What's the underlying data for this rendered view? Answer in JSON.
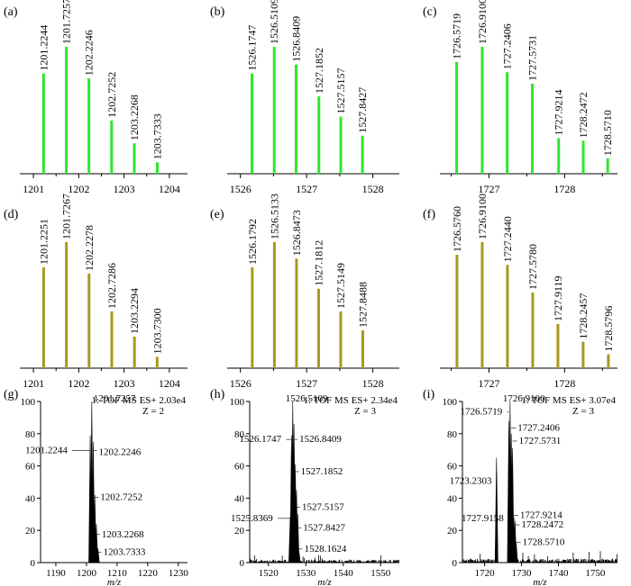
{
  "figure": {
    "colors": {
      "green": "#2EE62E",
      "olive": "#A69A1E",
      "spectrum": "#000000",
      "axis": "#000000"
    }
  },
  "chart_data": [
    {
      "type": "bar",
      "panel": "(a)",
      "style": "stick",
      "color": "#2EE62E",
      "xlim": [
        1200.7,
        1204.4
      ],
      "xticks": [
        1201,
        1202,
        1203,
        1204
      ],
      "peaks": [
        {
          "x": 1201.2244,
          "y": 79,
          "label": "1201.2244"
        },
        {
          "x": 1201.7257,
          "y": 100,
          "label": "1201.7257"
        },
        {
          "x": 1202.2246,
          "y": 75,
          "label": "1202.2246"
        },
        {
          "x": 1202.7252,
          "y": 42,
          "label": "1202.7252"
        },
        {
          "x": 1203.2268,
          "y": 24,
          "label": "1203.2268"
        },
        {
          "x": 1203.7333,
          "y": 9,
          "label": "1203.7333"
        }
      ]
    },
    {
      "type": "bar",
      "panel": "(b)",
      "style": "stick",
      "color": "#2EE62E",
      "xlim": [
        1525.8,
        1528.4
      ],
      "xticks": [
        1526,
        1527,
        1528
      ],
      "peaks": [
        {
          "x": 1526.1747,
          "y": 79,
          "label": "1526.1747"
        },
        {
          "x": 1526.5109,
          "y": 100,
          "label": "1526.5109"
        },
        {
          "x": 1526.8409,
          "y": 86,
          "label": "1526.8409"
        },
        {
          "x": 1527.1852,
          "y": 61,
          "label": "1527.1852"
        },
        {
          "x": 1527.5157,
          "y": 45,
          "label": "1527.5157"
        },
        {
          "x": 1527.8427,
          "y": 30,
          "label": "1527.8427"
        }
      ]
    },
    {
      "type": "bar",
      "panel": "(c)",
      "style": "stick",
      "color": "#2EE62E",
      "xlim": [
        1726.35,
        1728.7
      ],
      "xticks": [
        1727,
        1728
      ],
      "peaks": [
        {
          "x": 1726.5719,
          "y": 88,
          "label": "1726.5719"
        },
        {
          "x": 1726.91,
          "y": 100,
          "label": "1726.9100"
        },
        {
          "x": 1727.2406,
          "y": 80,
          "label": "1727.2406"
        },
        {
          "x": 1727.5731,
          "y": 71,
          "label": "1727.5731"
        },
        {
          "x": 1727.9214,
          "y": 28,
          "label": "1727.9214"
        },
        {
          "x": 1728.2472,
          "y": 26,
          "label": "1728.2472"
        },
        {
          "x": 1728.571,
          "y": 12,
          "label": "1728.5710"
        }
      ]
    },
    {
      "type": "bar",
      "panel": "(d)",
      "style": "stick",
      "color": "#A69A1E",
      "xlim": [
        1200.7,
        1204.4
      ],
      "xticks": [
        1201,
        1202,
        1203,
        1204
      ],
      "peaks": [
        {
          "x": 1201.2251,
          "y": 80,
          "label": "1201.2251"
        },
        {
          "x": 1201.7267,
          "y": 100,
          "label": "1201.7267"
        },
        {
          "x": 1202.2278,
          "y": 75,
          "label": "1202.2278"
        },
        {
          "x": 1202.7286,
          "y": 45,
          "label": "1202.7286"
        },
        {
          "x": 1203.2294,
          "y": 25,
          "label": "1203.2294"
        },
        {
          "x": 1203.73,
          "y": 9,
          "label": "1203.7300"
        }
      ]
    },
    {
      "type": "bar",
      "panel": "(e)",
      "style": "stick",
      "color": "#A69A1E",
      "xlim": [
        1525.8,
        1528.4
      ],
      "xticks": [
        1526,
        1527,
        1528
      ],
      "peaks": [
        {
          "x": 1526.1792,
          "y": 80,
          "label": "1526.1792"
        },
        {
          "x": 1526.5133,
          "y": 100,
          "label": "1526.5133"
        },
        {
          "x": 1526.8473,
          "y": 87,
          "label": "1526.8473"
        },
        {
          "x": 1527.1812,
          "y": 63,
          "label": "1527.1812"
        },
        {
          "x": 1527.5149,
          "y": 45,
          "label": "1527.5149"
        },
        {
          "x": 1527.8488,
          "y": 30,
          "label": "1527.8488"
        }
      ]
    },
    {
      "type": "bar",
      "panel": "(f)",
      "style": "stick",
      "color": "#A69A1E",
      "xlim": [
        1726.35,
        1728.7
      ],
      "xticks": [
        1727,
        1728
      ],
      "peaks": [
        {
          "x": 1726.576,
          "y": 90,
          "label": "1726.5760"
        },
        {
          "x": 1726.91,
          "y": 100,
          "label": "1726.9100"
        },
        {
          "x": 1727.244,
          "y": 82,
          "label": "1727.2440"
        },
        {
          "x": 1727.578,
          "y": 60,
          "label": "1727.5780"
        },
        {
          "x": 1727.9119,
          "y": 35,
          "label": "1727.9119"
        },
        {
          "x": 1728.2457,
          "y": 21,
          "label": "1728.2457"
        },
        {
          "x": 1728.5796,
          "y": 11,
          "label": "1728.5796"
        }
      ]
    },
    {
      "type": "line",
      "panel": "(g)",
      "style": "spectrum",
      "color": "#000000",
      "xlim": [
        1185,
        1233
      ],
      "ylim": [
        0,
        100
      ],
      "xticks": [
        1190,
        1200,
        1210,
        1220,
        1230
      ],
      "yticks": [
        0,
        20,
        40,
        60,
        80,
        100
      ],
      "xlabel": "m/z",
      "noise": 0,
      "header": "1: TOF MS ES+ 2.03e4",
      "charge": "Z = 2",
      "peaks": [
        {
          "x": 1201.2244,
          "y": 79,
          "label": "1201.2244"
        },
        {
          "x": 1201.7257,
          "y": 100,
          "label": "1201.7257"
        },
        {
          "x": 1202.2246,
          "y": 75,
          "label": "1202.2246"
        },
        {
          "x": 1202.7252,
          "y": 42,
          "label": "1202.7252"
        },
        {
          "x": 1203.2268,
          "y": 24,
          "label": "1203.2268"
        },
        {
          "x": 1203.7333,
          "y": 9,
          "label": "1203.7333"
        }
      ]
    },
    {
      "type": "line",
      "panel": "(h)",
      "style": "spectrum",
      "color": "#000000",
      "xlim": [
        1515,
        1555
      ],
      "ylim": [
        0,
        100
      ],
      "xticks": [
        1520,
        1530,
        1540,
        1550
      ],
      "yticks": [
        0,
        20,
        40,
        60,
        80,
        100
      ],
      "xlabel": "m/z",
      "noise": 3,
      "header": "1: TOF MS ES+ 2.34e4",
      "charge": "Z = 3",
      "peaks": [
        {
          "x": 1525.8369,
          "y": 28,
          "label": "1525.8369"
        },
        {
          "x": 1526.1747,
          "y": 79,
          "label": "1526.1747"
        },
        {
          "x": 1526.5109,
          "y": 100,
          "label": "1526.5109"
        },
        {
          "x": 1526.8409,
          "y": 86,
          "label": "1526.8409"
        },
        {
          "x": 1527.1852,
          "y": 61,
          "label": "1527.1852"
        },
        {
          "x": 1527.5157,
          "y": 45,
          "label": "1527.5157"
        },
        {
          "x": 1527.8427,
          "y": 30,
          "label": "1527.8427"
        },
        {
          "x": 1528.1624,
          "y": 7,
          "label": "1528.1624"
        }
      ]
    },
    {
      "type": "line",
      "panel": "(i)",
      "style": "spectrum",
      "color": "#000000",
      "xlim": [
        1714,
        1756
      ],
      "ylim": [
        0,
        100
      ],
      "xticks": [
        1720,
        1730,
        1740,
        1750
      ],
      "yticks": [
        0,
        20,
        40,
        60,
        80,
        100
      ],
      "xlabel": "m/z",
      "noise": 4,
      "header": "1: TOF MS ES+ 3.07e4",
      "charge": "Z = 3",
      "peaks": [
        {
          "x": 1723.2303,
          "y": 65,
          "label": "1723.2303"
        },
        {
          "x": 1726.5719,
          "y": 88,
          "label": "1726.5719"
        },
        {
          "x": 1726.91,
          "y": 100,
          "label": "1726.9100"
        },
        {
          "x": 1727.2406,
          "y": 80,
          "label": "1727.2406"
        },
        {
          "x": 1727.5731,
          "y": 71,
          "label": "1727.5731"
        },
        {
          "x": 1727.9158,
          "y": 28,
          "label": "1727.9158"
        },
        {
          "x": 1727.9214,
          "y": 28,
          "label": "1727.9214"
        },
        {
          "x": 1728.2472,
          "y": 26,
          "label": "1728.2472"
        },
        {
          "x": 1728.571,
          "y": 12,
          "label": "1728.5710"
        }
      ]
    }
  ]
}
